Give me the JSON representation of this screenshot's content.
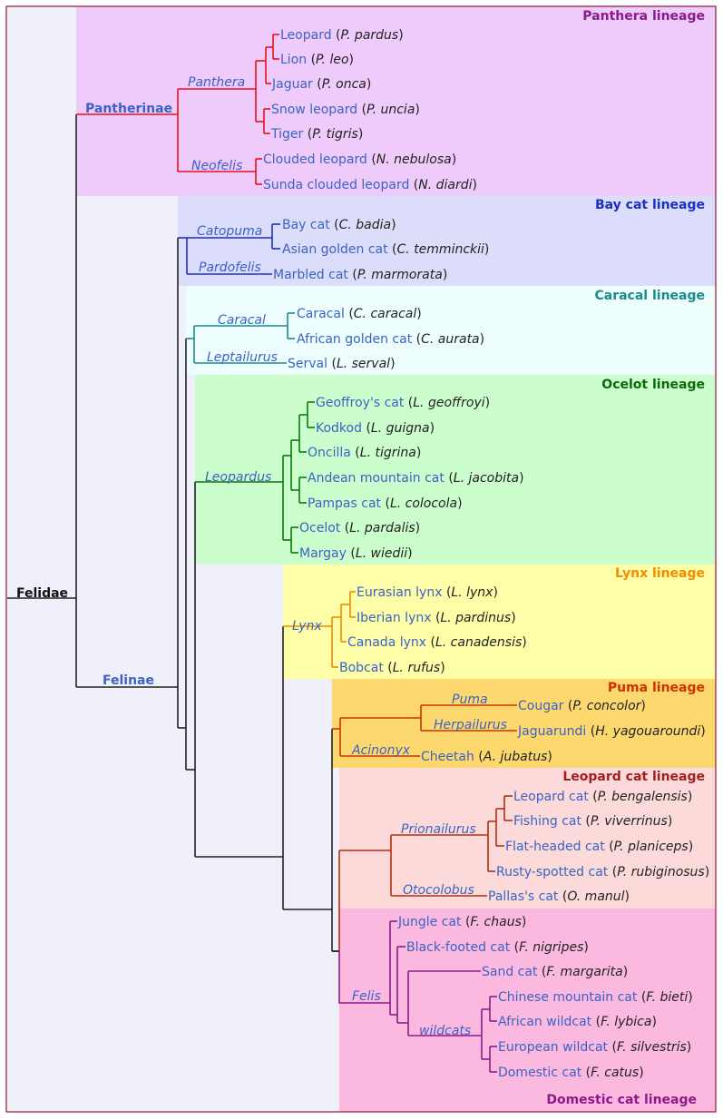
{
  "root_label": "Felidae",
  "subfamilies": {
    "pantherinae": "Pantherinae",
    "felinae": "Felinae"
  },
  "lineages": {
    "panthera": {
      "title": "Panthera lineage",
      "color": "#e8101a",
      "bg": "#efcbfb",
      "title_color": "#8b1a8b"
    },
    "baycat": {
      "title": "Bay cat lineage",
      "color": "#1b2fc0",
      "bg": "#dcdcfb",
      "title_color": "#1b2fc0"
    },
    "caracal": {
      "title": "Caracal lineage",
      "color": "#1a8a8a",
      "bg": "#eefefe",
      "title_color": "#1a8a8a"
    },
    "ocelot": {
      "title": "Ocelot lineage",
      "color": "#0a7a0a",
      "bg": "#ccfdcc",
      "title_color": "#0a6a0a"
    },
    "lynx": {
      "title": "Lynx lineage",
      "color": "#f08c00",
      "bg": "#fefea8",
      "title_color": "#f08c00"
    },
    "puma": {
      "title": "Puma lineage",
      "color": "#cc3300",
      "bg": "#fdd86e",
      "title_color": "#cc3300"
    },
    "leopardcat": {
      "title": "Leopard cat lineage",
      "color": "#b03010",
      "bg": "#fddada",
      "title_color": "#a02020"
    },
    "domestic": {
      "title": "Domestic cat lineage",
      "color": "#8b1a8b",
      "bg": "#fcb9e0",
      "title_color": "#8b1a8b"
    }
  },
  "colors": {
    "felidae_bg": "#f0f0fb",
    "border": "#8b1a3a",
    "root_line": "#222222",
    "common_name": "#3a63c4"
  },
  "genera": {
    "panthera": "Panthera",
    "neofelis": "Neofelis",
    "catopuma": "Catopuma",
    "pardofelis": "Pardofelis",
    "caracal": "Caracal",
    "leptailurus": "Leptailurus",
    "leopardus": "Leopardus",
    "lynx": "Lynx",
    "puma": "Puma",
    "herpailurus": "Herpailurus",
    "acinonyx": "Acinonyx",
    "prionailurus": "Prionailurus",
    "otocolobus": "Otocolobus",
    "felis": "Felis",
    "wildcats": "wildcats"
  },
  "species": [
    {
      "name": "Leopard",
      "sci": "P. pardus"
    },
    {
      "name": "Lion",
      "sci": "P. leo"
    },
    {
      "name": "Jaguar",
      "sci": "P. onca"
    },
    {
      "name": "Snow leopard",
      "sci": "P. uncia"
    },
    {
      "name": "Tiger",
      "sci": "P. tigris"
    },
    {
      "name": "Clouded leopard",
      "sci": "N. nebulosa"
    },
    {
      "name": "Sunda clouded leopard",
      "sci": "N. diardi"
    },
    {
      "name": "Bay cat",
      "sci": "C. badia"
    },
    {
      "name": "Asian golden cat",
      "sci": "C. temminckii"
    },
    {
      "name": "Marbled cat",
      "sci": "P. marmorata"
    },
    {
      "name": "Caracal",
      "sci": "C. caracal"
    },
    {
      "name": "African golden cat",
      "sci": "C. aurata"
    },
    {
      "name": "Serval",
      "sci": "L. serval"
    },
    {
      "name": "Geoffroy's cat",
      "sci": "L. geoffroyi"
    },
    {
      "name": "Kodkod",
      "sci": "L. guigna"
    },
    {
      "name": "Oncilla",
      "sci": "L. tigrina"
    },
    {
      "name": "Andean mountain cat",
      "sci": "L. jacobita"
    },
    {
      "name": "Pampas cat",
      "sci": "L. colocola"
    },
    {
      "name": "Ocelot",
      "sci": "L. pardalis"
    },
    {
      "name": "Margay",
      "sci": "L. wiedii"
    },
    {
      "name": "Eurasian lynx",
      "sci": "L. lynx"
    },
    {
      "name": "Iberian lynx",
      "sci": "L. pardinus"
    },
    {
      "name": "Canada lynx",
      "sci": "L. canadensis"
    },
    {
      "name": "Bobcat",
      "sci": "L. rufus"
    },
    {
      "name": "Cougar",
      "sci": "P. concolor"
    },
    {
      "name": "Jaguarundi",
      "sci": "H. yagouaroundi"
    },
    {
      "name": "Cheetah",
      "sci": "A. jubatus"
    },
    {
      "name": "Leopard cat",
      "sci": "P. bengalensis"
    },
    {
      "name": "Fishing cat",
      "sci": "P. viverrinus"
    },
    {
      "name": "Flat-headed cat",
      "sci": "P. planiceps"
    },
    {
      "name": "Rusty-spotted cat",
      "sci": "P. rubiginosus"
    },
    {
      "name": "Pallas's cat",
      "sci": "O. manul"
    },
    {
      "name": "Jungle cat",
      "sci": "F. chaus"
    },
    {
      "name": "Black-footed cat",
      "sci": "F. nigripes"
    },
    {
      "name": "Sand cat",
      "sci": "F. margarita"
    },
    {
      "name": "Chinese mountain cat",
      "sci": "F. bieti"
    },
    {
      "name": "African wildcat",
      "sci": "F. lybica"
    },
    {
      "name": "European wildcat",
      "sci": "F. silvestris"
    },
    {
      "name": "Domestic cat",
      "sci": "F. catus"
    }
  ]
}
